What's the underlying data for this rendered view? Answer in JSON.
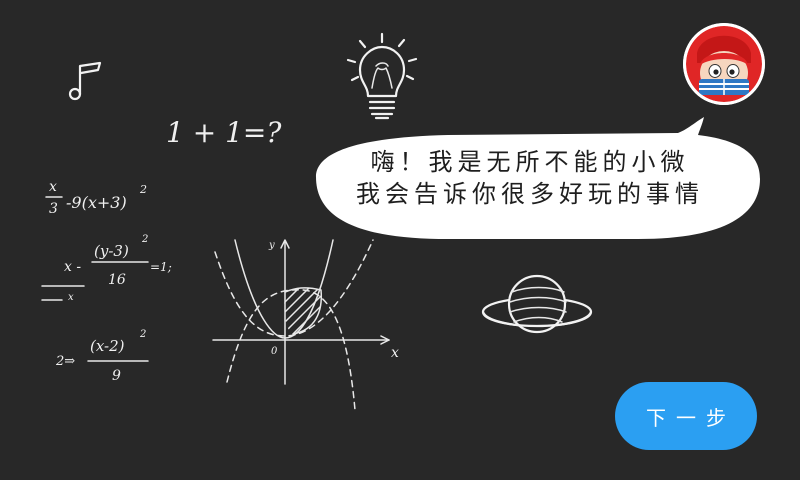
{
  "bubble": {
    "line1": "嗨！我是无所不能的小微",
    "line2": "我会告诉你很多好玩的事情"
  },
  "next_button": {
    "label": "下一步"
  },
  "chalkboard": {
    "equation_simple": "1 + 1=?",
    "graph_axis_x": "x",
    "graph_axis_y": "y",
    "graph_origin": "0",
    "formula1": {
      "num": "x",
      "den": "3",
      "tail": "-9(x+3)",
      "exp": "2"
    },
    "formula2": {
      "lead": "x -",
      "num": "(y-3)",
      "exp": "2",
      "den": "16",
      "tail": "=1;",
      "sub": "x"
    },
    "formula3": {
      "lead": "2⇒",
      "num": "(x-2)",
      "exp": "2",
      "den": "9"
    }
  },
  "colors": {
    "background": "#282828",
    "accent": "#2b9ff2",
    "bubble": "#ffffff"
  },
  "icons": [
    "music-note-icon",
    "lightbulb-icon",
    "planet-icon",
    "avatar-icon"
  ]
}
